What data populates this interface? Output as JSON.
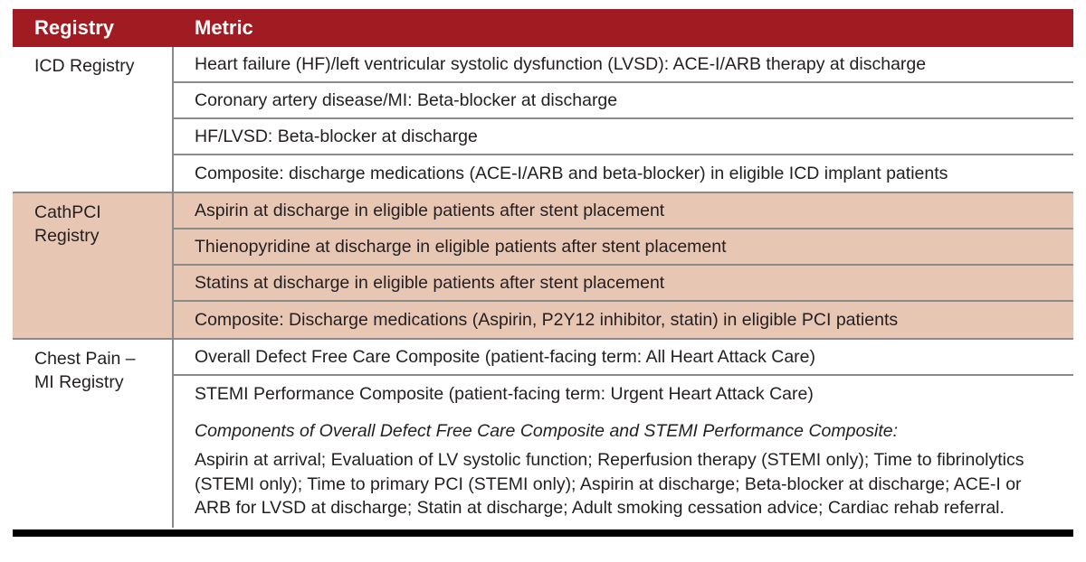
{
  "table": {
    "colors": {
      "header_bg": "#a11c22",
      "header_text": "#ffffff",
      "cathpci_row_bg": "#e8c6b4",
      "divider_line": "#8a8a8a",
      "body_text": "#231f20",
      "bottom_rule": "#000000"
    },
    "headers": {
      "registry": "Registry",
      "metric": "Metric"
    },
    "sections": [
      {
        "registry_lines": [
          "ICD Registry"
        ],
        "metrics": [
          "Heart failure (HF)/left ventricular systolic dysfunction (LVSD): ACE-I/ARB therapy at discharge",
          "Coronary artery disease/MI: Beta-blocker at discharge",
          "HF/LVSD: Beta-blocker at discharge",
          "Composite: discharge medications (ACE-I/ARB and beta-blocker) in eligible ICD implant patients"
        ]
      },
      {
        "registry_lines": [
          "CathPCI",
          "Registry"
        ],
        "metrics": [
          "Aspirin at discharge in eligible patients after stent placement",
          "Thienopyridine at discharge in eligible patients after stent placement",
          "Statins at discharge in eligible patients after stent placement",
          "Composite: Discharge medications (Aspirin, P2Y12 inhibitor, statin) in eligible PCI patients"
        ]
      },
      {
        "registry_lines": [
          "Chest Pain –",
          "MI Registry"
        ],
        "metrics": [
          "Overall Defect Free Care Composite (patient-facing term: All Heart Attack Care)",
          "STEMI Performance Composite (patient-facing term: Urgent Heart Attack Care)"
        ],
        "components_heading": "Components of Overall Defect Free Care Composite and STEMI Performance Composite:",
        "components_body": "Aspirin at arrival; Evaluation of LV systolic function; Reperfusion therapy (STEMI only); Time to fibrinolytics (STEMI only); Time to primary PCI (STEMI only); Aspirin at discharge; Beta-blocker at discharge; ACE-I or ARB for LVSD at discharge; Statin at discharge; Adult smoking cessation advice; Cardiac rehab referral."
      }
    ]
  }
}
